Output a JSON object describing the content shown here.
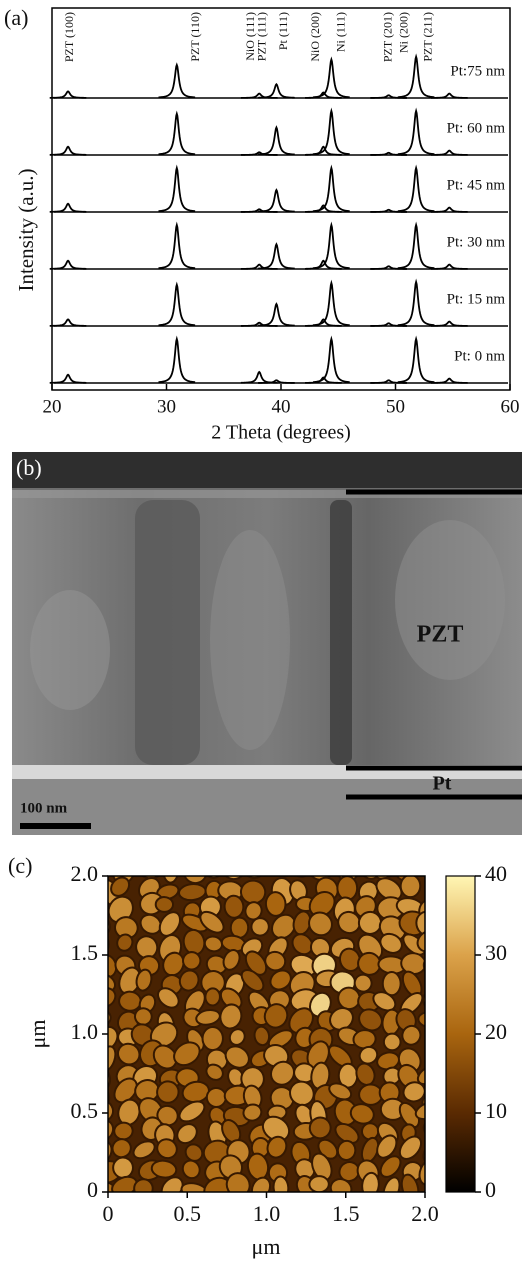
{
  "chart_data": [
    {
      "type": "xrd",
      "panel_label": "(a)",
      "xlabel": "2 Theta (degrees)",
      "ylabel": "Intensity (a.u.)",
      "xlim": [
        20,
        60
      ],
      "xticks": [
        20,
        30,
        40,
        50,
        60
      ],
      "ylim": [
        0,
        100
      ],
      "peak_labels": [
        {
          "text": "PZT (100)",
          "x": 21.6
        },
        {
          "text": "PZT (110)",
          "x": 32.6
        },
        {
          "text": "NiO (111)",
          "x": 37.4
        },
        {
          "text": "PZT (111)",
          "x": 38.4
        },
        {
          "text": "Pt (111)",
          "x": 40.3
        },
        {
          "text": "NiO (200)",
          "x": 43.1
        },
        {
          "text": "Ni (111)",
          "x": 45.3
        },
        {
          "text": "PZT (201)",
          "x": 49.4
        },
        {
          "text": "Ni (200)",
          "x": 50.8
        },
        {
          "text": "PZT (211)",
          "x": 52.9
        }
      ],
      "x": [
        21.4,
        30.9,
        38.1,
        39.6,
        43.7,
        44.4,
        49.4,
        51.8,
        54.7
      ],
      "series": [
        {
          "name": "Pt:75 nm",
          "color": "#000000",
          "values": [
            12,
            60,
            8,
            25,
            10,
            70,
            5,
            75,
            8
          ]
        },
        {
          "name": "Pt: 60 nm",
          "color": "#000000",
          "values": [
            15,
            75,
            5,
            50,
            15,
            80,
            4,
            80,
            8
          ]
        },
        {
          "name": "Pt: 45 nm",
          "color": "#000000",
          "values": [
            15,
            80,
            5,
            40,
            12,
            80,
            4,
            80,
            8
          ]
        },
        {
          "name": "Pt: 30 nm",
          "color": "#000000",
          "values": [
            15,
            80,
            8,
            45,
            15,
            80,
            5,
            80,
            8
          ]
        },
        {
          "name": "Pt: 15 nm",
          "color": "#000000",
          "values": [
            12,
            75,
            6,
            40,
            12,
            78,
            5,
            80,
            8
          ]
        },
        {
          "name": "Pt: 0 nm",
          "color": "#000000",
          "values": [
            15,
            80,
            20,
            5,
            10,
            80,
            5,
            80,
            8
          ]
        }
      ]
    },
    {
      "type": "heatmap",
      "panel_label": "(c)",
      "xlabel": "μm",
      "ylabel": "μm",
      "xlim": [
        0,
        2
      ],
      "ylim": [
        0,
        2
      ],
      "xticks": [
        0,
        0.5,
        {
          "value": 1,
          "label": "1.0"
        },
        1.5,
        {
          "value": 2,
          "label": "2.0"
        }
      ],
      "yticks": [
        0,
        0.5,
        {
          "value": 1,
          "label": "1.0"
        },
        1.5,
        {
          "value": 2,
          "label": "2.0"
        }
      ],
      "colorbar_lim": [
        0,
        40
      ],
      "colorbar_ticks": [
        0,
        10,
        20,
        30,
        40
      ],
      "colormap": [
        "#000000",
        "#5a2a02",
        "#a9650f",
        "#dba24a",
        "#fff6b4"
      ]
    }
  ],
  "panel_b": {
    "panel_label": "(b)",
    "layer_top": "PZT",
    "layer_bottom": "Pt",
    "scale_bar": "100 nm"
  }
}
